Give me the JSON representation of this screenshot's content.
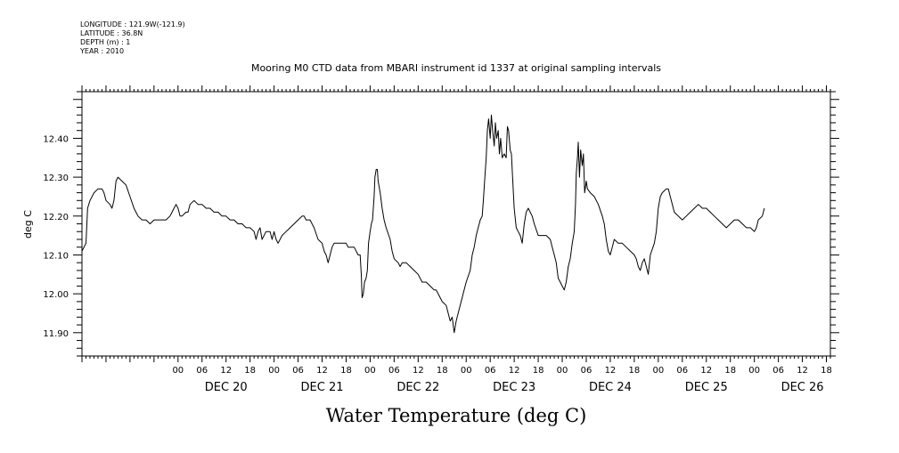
{
  "header": {
    "lines": [
      "LONGITUDE : 121.9W(-121.9)",
      "LATITUDE : 36.8N",
      "DEPTH (m) : 1",
      "YEAR : 2010"
    ]
  },
  "chart_data": {
    "type": "line",
    "title": "Mooring M0 CTD data from MBARI instrument id 1337 at original sampling intervals",
    "xlabel": "Water Temperature (deg C)",
    "ylabel": "deg C",
    "x_unit": "hours from 2010-12-20 00:00",
    "xlim": [
      -24,
      163
    ],
    "ylim": [
      11.84,
      12.52
    ],
    "y_ticks": [
      {
        "value": 11.9,
        "label": "11.90"
      },
      {
        "value": 12.0,
        "label": "12.00"
      },
      {
        "value": 12.1,
        "label": "12.10"
      },
      {
        "value": 12.2,
        "label": "12.20"
      },
      {
        "value": 12.3,
        "label": "12.30"
      },
      {
        "value": 12.4,
        "label": "12.40"
      }
    ],
    "hour_labels": [
      {
        "x": 0,
        "label": "00"
      },
      {
        "x": 6,
        "label": "06"
      },
      {
        "x": 12,
        "label": "12"
      },
      {
        "x": 18,
        "label": "18"
      },
      {
        "x": 24,
        "label": "00"
      },
      {
        "x": 30,
        "label": "06"
      },
      {
        "x": 36,
        "label": "12"
      },
      {
        "x": 42,
        "label": "18"
      },
      {
        "x": 48,
        "label": "00"
      },
      {
        "x": 54,
        "label": "06"
      },
      {
        "x": 60,
        "label": "12"
      },
      {
        "x": 66,
        "label": "18"
      },
      {
        "x": 72,
        "label": "00"
      },
      {
        "x": 78,
        "label": "06"
      },
      {
        "x": 84,
        "label": "12"
      },
      {
        "x": 90,
        "label": "18"
      },
      {
        "x": 96,
        "label": "00"
      },
      {
        "x": 102,
        "label": "06"
      },
      {
        "x": 108,
        "label": "12"
      },
      {
        "x": 114,
        "label": "18"
      },
      {
        "x": 120,
        "label": "00"
      },
      {
        "x": 126,
        "label": "06"
      },
      {
        "x": 132,
        "label": "12"
      },
      {
        "x": 138,
        "label": "18"
      },
      {
        "x": 144,
        "label": "00"
      },
      {
        "x": 150,
        "label": "06"
      },
      {
        "x": 156,
        "label": "12"
      },
      {
        "x": 162,
        "label": "18"
      }
    ],
    "day_labels": [
      {
        "x": 12,
        "label": "DEC 20"
      },
      {
        "x": 36,
        "label": "DEC 21"
      },
      {
        "x": 60,
        "label": "DEC 22"
      },
      {
        "x": 84,
        "label": "DEC 23"
      },
      {
        "x": 108,
        "label": "DEC 24"
      },
      {
        "x": 132,
        "label": "DEC 25"
      },
      {
        "x": 156,
        "label": "DEC 26"
      }
    ],
    "grid": false,
    "series": [
      {
        "color": "#000000",
        "points": [
          [
            -24,
            12.11
          ],
          [
            -23,
            12.13
          ],
          [
            -22.6,
            12.22
          ],
          [
            -22,
            12.24
          ],
          [
            -21,
            12.26
          ],
          [
            -20,
            12.27
          ],
          [
            -19,
            12.27
          ],
          [
            -18.5,
            12.26
          ],
          [
            -18,
            12.24
          ],
          [
            -17,
            12.23
          ],
          [
            -16.5,
            12.22
          ],
          [
            -16,
            12.24
          ],
          [
            -15.5,
            12.29
          ],
          [
            -15,
            12.3
          ],
          [
            -14,
            12.29
          ],
          [
            -13,
            12.28
          ],
          [
            -12,
            12.25
          ],
          [
            -11,
            12.22
          ],
          [
            -10,
            12.2
          ],
          [
            -9,
            12.19
          ],
          [
            -8,
            12.19
          ],
          [
            -7,
            12.18
          ],
          [
            -6,
            12.19
          ],
          [
            -5,
            12.19
          ],
          [
            -4,
            12.19
          ],
          [
            -3,
            12.19
          ],
          [
            -2,
            12.2
          ],
          [
            -1.5,
            12.21
          ],
          [
            -1,
            12.22
          ],
          [
            -0.5,
            12.23
          ],
          [
            0,
            12.22
          ],
          [
            0.5,
            12.2
          ],
          [
            1,
            12.2
          ],
          [
            2,
            12.21
          ],
          [
            2.5,
            12.21
          ],
          [
            3,
            12.23
          ],
          [
            4,
            12.24
          ],
          [
            5,
            12.23
          ],
          [
            6,
            12.23
          ],
          [
            7,
            12.22
          ],
          [
            8,
            12.22
          ],
          [
            9,
            12.21
          ],
          [
            10,
            12.21
          ],
          [
            11,
            12.2
          ],
          [
            12,
            12.2
          ],
          [
            13,
            12.19
          ],
          [
            14,
            12.19
          ],
          [
            15,
            12.18
          ],
          [
            16,
            12.18
          ],
          [
            17,
            12.17
          ],
          [
            18,
            12.17
          ],
          [
            19,
            12.16
          ],
          [
            19.5,
            12.14
          ],
          [
            20,
            12.16
          ],
          [
            20.5,
            12.17
          ],
          [
            21,
            12.14
          ],
          [
            22,
            12.16
          ],
          [
            23,
            12.16
          ],
          [
            23.5,
            12.14
          ],
          [
            24,
            12.16
          ],
          [
            24.5,
            12.14
          ],
          [
            25,
            12.13
          ],
          [
            26,
            12.15
          ],
          [
            27,
            12.16
          ],
          [
            28,
            12.17
          ],
          [
            29,
            12.18
          ],
          [
            30,
            12.19
          ],
          [
            31,
            12.2
          ],
          [
            31.5,
            12.2
          ],
          [
            32,
            12.19
          ],
          [
            33,
            12.19
          ],
          [
            34,
            12.17
          ],
          [
            35,
            12.14
          ],
          [
            36,
            12.13
          ],
          [
            36.5,
            12.11
          ],
          [
            37,
            12.1
          ],
          [
            37.5,
            12.08
          ],
          [
            38,
            12.1
          ],
          [
            38.5,
            12.12
          ],
          [
            39,
            12.13
          ],
          [
            40,
            12.13
          ],
          [
            41,
            12.13
          ],
          [
            42,
            12.13
          ],
          [
            42.5,
            12.12
          ],
          [
            43,
            12.12
          ],
          [
            44,
            12.12
          ],
          [
            45,
            12.1
          ],
          [
            45.5,
            12.1
          ],
          [
            45.8,
            12.05
          ],
          [
            46,
            11.99
          ],
          [
            46.3,
            12.0
          ],
          [
            46.6,
            12.03
          ],
          [
            47,
            12.04
          ],
          [
            47.3,
            12.06
          ],
          [
            47.6,
            12.13
          ],
          [
            48,
            12.16
          ],
          [
            48.3,
            12.18
          ],
          [
            48.6,
            12.19
          ],
          [
            49,
            12.25
          ],
          [
            49.2,
            12.3
          ],
          [
            49.5,
            12.32
          ],
          [
            49.8,
            12.32
          ],
          [
            50,
            12.29
          ],
          [
            50.5,
            12.26
          ],
          [
            51,
            12.22
          ],
          [
            51.5,
            12.19
          ],
          [
            52,
            12.17
          ],
          [
            53,
            12.14
          ],
          [
            53.5,
            12.11
          ],
          [
            54,
            12.09
          ],
          [
            55,
            12.08
          ],
          [
            55.5,
            12.07
          ],
          [
            56,
            12.08
          ],
          [
            57,
            12.08
          ],
          [
            58,
            12.07
          ],
          [
            59,
            12.06
          ],
          [
            60,
            12.05
          ],
          [
            61,
            12.03
          ],
          [
            62,
            12.03
          ],
          [
            63,
            12.02
          ],
          [
            64,
            12.01
          ],
          [
            64.5,
            12.01
          ],
          [
            65,
            12.0
          ],
          [
            66,
            11.98
          ],
          [
            67,
            11.97
          ],
          [
            68,
            11.93
          ],
          [
            68.5,
            11.94
          ],
          [
            69,
            11.9
          ],
          [
            69.5,
            11.93
          ],
          [
            70,
            11.95
          ],
          [
            71,
            11.99
          ],
          [
            72,
            12.03
          ],
          [
            73,
            12.06
          ],
          [
            73.5,
            12.1
          ],
          [
            74,
            12.12
          ],
          [
            74.5,
            12.15
          ],
          [
            75,
            12.17
          ],
          [
            75.5,
            12.19
          ],
          [
            76,
            12.2
          ],
          [
            76.3,
            12.24
          ],
          [
            76.6,
            12.29
          ],
          [
            77,
            12.35
          ],
          [
            77.3,
            12.42
          ],
          [
            77.6,
            12.45
          ],
          [
            78,
            12.4
          ],
          [
            78.3,
            12.46
          ],
          [
            78.6,
            12.42
          ],
          [
            79,
            12.38
          ],
          [
            79.3,
            12.44
          ],
          [
            79.6,
            12.4
          ],
          [
            80,
            12.42
          ],
          [
            80.3,
            12.36
          ],
          [
            80.6,
            12.4
          ],
          [
            81,
            12.35
          ],
          [
            81.5,
            12.36
          ],
          [
            82,
            12.35
          ],
          [
            82.3,
            12.43
          ],
          [
            82.6,
            12.42
          ],
          [
            83,
            12.37
          ],
          [
            83.3,
            12.36
          ],
          [
            83.6,
            12.3
          ],
          [
            84,
            12.22
          ],
          [
            84.5,
            12.17
          ],
          [
            85,
            12.16
          ],
          [
            85.5,
            12.15
          ],
          [
            86,
            12.13
          ],
          [
            86.5,
            12.18
          ],
          [
            87,
            12.21
          ],
          [
            87.5,
            12.22
          ],
          [
            88,
            12.21
          ],
          [
            88.5,
            12.2
          ],
          [
            89,
            12.18
          ],
          [
            90,
            12.15
          ],
          [
            91,
            12.15
          ],
          [
            92,
            12.15
          ],
          [
            93,
            12.14
          ],
          [
            93.5,
            12.12
          ],
          [
            94,
            12.1
          ],
          [
            94.5,
            12.08
          ],
          [
            95,
            12.04
          ],
          [
            95.5,
            12.03
          ],
          [
            96,
            12.02
          ],
          [
            96.5,
            12.01
          ],
          [
            97,
            12.03
          ],
          [
            97.5,
            12.07
          ],
          [
            98,
            12.09
          ],
          [
            98.5,
            12.13
          ],
          [
            99,
            12.16
          ],
          [
            99.3,
            12.23
          ],
          [
            99.5,
            12.31
          ],
          [
            99.8,
            12.35
          ],
          [
            100,
            12.39
          ],
          [
            100.3,
            12.3
          ],
          [
            100.6,
            12.37
          ],
          [
            101,
            12.33
          ],
          [
            101.3,
            12.36
          ],
          [
            101.6,
            12.26
          ],
          [
            102,
            12.29
          ],
          [
            102.3,
            12.27
          ],
          [
            103,
            12.26
          ],
          [
            104,
            12.25
          ],
          [
            105,
            12.23
          ],
          [
            106,
            12.2
          ],
          [
            106.5,
            12.18
          ],
          [
            107,
            12.14
          ],
          [
            107.5,
            12.11
          ],
          [
            108,
            12.1
          ],
          [
            108.5,
            12.12
          ],
          [
            109,
            12.14
          ],
          [
            110,
            12.13
          ],
          [
            111,
            12.13
          ],
          [
            112,
            12.12
          ],
          [
            113,
            12.11
          ],
          [
            114,
            12.1
          ],
          [
            114.5,
            12.09
          ],
          [
            115,
            12.07
          ],
          [
            115.5,
            12.06
          ],
          [
            116,
            12.08
          ],
          [
            116.5,
            12.09
          ],
          [
            117,
            12.07
          ],
          [
            117.5,
            12.05
          ],
          [
            118,
            12.1
          ],
          [
            119,
            12.13
          ],
          [
            119.5,
            12.16
          ],
          [
            120,
            12.22
          ],
          [
            120.5,
            12.25
          ],
          [
            121,
            12.26
          ],
          [
            122,
            12.27
          ],
          [
            122.5,
            12.27
          ],
          [
            123,
            12.25
          ],
          [
            123.5,
            12.23
          ],
          [
            124,
            12.21
          ],
          [
            125,
            12.2
          ],
          [
            126,
            12.19
          ],
          [
            127,
            12.2
          ],
          [
            128,
            12.21
          ],
          [
            129,
            12.22
          ],
          [
            130,
            12.23
          ],
          [
            131,
            12.22
          ],
          [
            132,
            12.22
          ],
          [
            133,
            12.21
          ],
          [
            134,
            12.2
          ],
          [
            135,
            12.19
          ],
          [
            136,
            12.18
          ],
          [
            137,
            12.17
          ],
          [
            138,
            12.18
          ],
          [
            139,
            12.19
          ],
          [
            140,
            12.19
          ],
          [
            141,
            12.18
          ],
          [
            142,
            12.17
          ],
          [
            143,
            12.17
          ],
          [
            144,
            12.16
          ],
          [
            144.5,
            12.17
          ],
          [
            145,
            12.19
          ],
          [
            146,
            12.2
          ],
          [
            146.5,
            12.22
          ]
        ]
      }
    ]
  }
}
